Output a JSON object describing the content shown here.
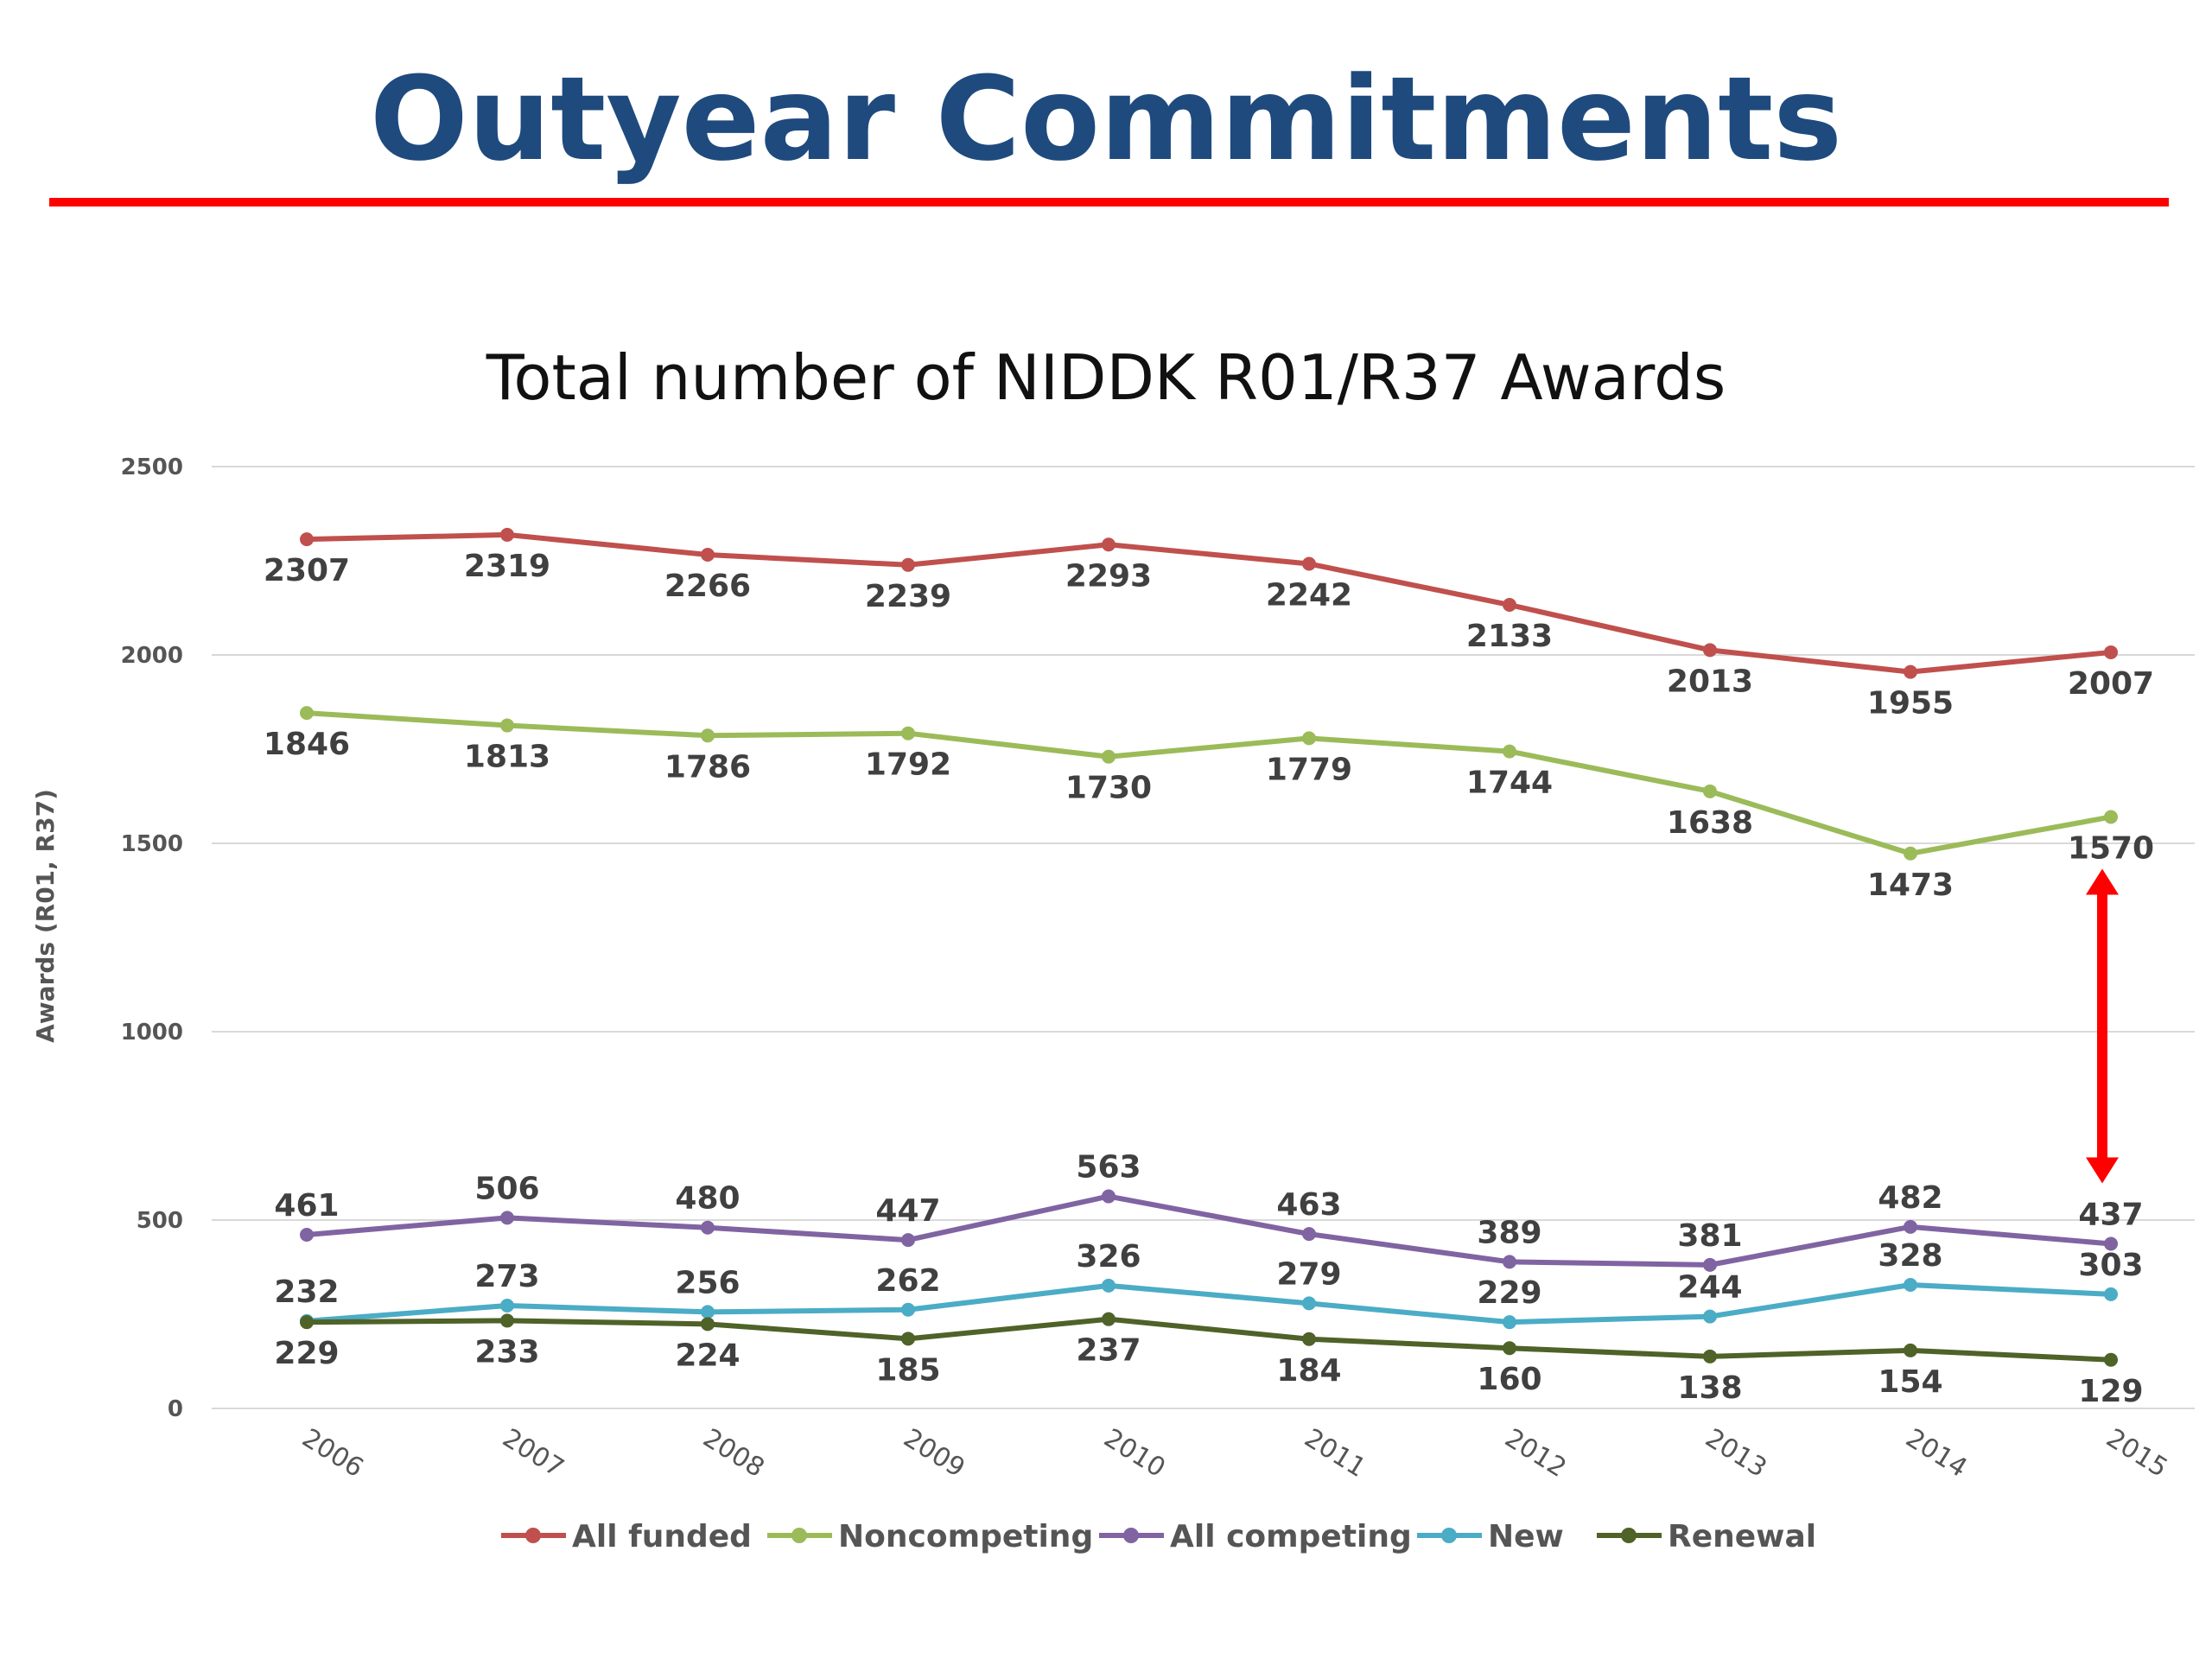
{
  "slide": {
    "title": "Outyear Commitments"
  },
  "colors": {
    "title": "#1f4a7e",
    "rule": "#ff0000",
    "arrow": "#ff0000",
    "gridline": "#d9d9d9"
  },
  "chart_data": {
    "type": "line",
    "title": "Total number of NIDDK R01/R37 Awards",
    "xlabel": "",
    "ylabel": "Awards (R01, R37)",
    "categories": [
      "2006",
      "2007",
      "2008",
      "2009",
      "2010",
      "2011",
      "2012",
      "2013",
      "2014",
      "2015"
    ],
    "ylim": [
      0,
      2500
    ],
    "yticks": [
      0,
      500,
      1000,
      1500,
      2000,
      2500
    ],
    "grid": true,
    "legend_position": "bottom",
    "series": [
      {
        "name": "All funded",
        "color": "#c0504d",
        "label_position": "below",
        "values": [
          2307,
          2319,
          2266,
          2239,
          2293,
          2242,
          2133,
          2013,
          1955,
          2007
        ]
      },
      {
        "name": "Noncompeting",
        "color": "#9bbb59",
        "label_position": "below",
        "values": [
          1846,
          1813,
          1786,
          1792,
          1730,
          1779,
          1744,
          1638,
          1473,
          1570
        ]
      },
      {
        "name": "All competing",
        "color": "#8064a2",
        "label_position": "above",
        "values": [
          461,
          506,
          480,
          447,
          563,
          463,
          389,
          381,
          482,
          437
        ]
      },
      {
        "name": "New",
        "color": "#4bacc6",
        "label_position": "above",
        "values": [
          232,
          273,
          256,
          262,
          326,
          279,
          229,
          244,
          328,
          303
        ]
      },
      {
        "name": "Renewal",
        "color": "#4f6228",
        "label_position": "below",
        "values": [
          229,
          233,
          224,
          185,
          237,
          184,
          160,
          138,
          154,
          129
        ]
      }
    ],
    "annotations": [
      {
        "type": "double-arrow",
        "color": "#ff0000",
        "category": "2015",
        "from": 1570,
        "to": 437
      }
    ]
  }
}
